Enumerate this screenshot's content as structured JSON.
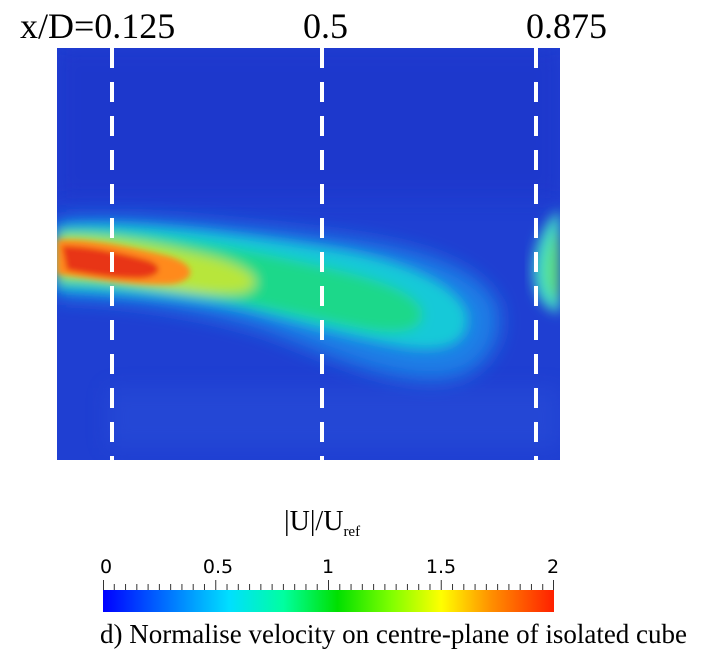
{
  "top_labels": [
    "x/D=0.125",
    "0.5",
    "0.875"
  ],
  "colorbar": {
    "title_main": "|U|/U",
    "title_sub": "ref",
    "tick_labels": [
      "0",
      "0.5",
      "1",
      "1.5",
      "2"
    ],
    "min": 0,
    "max": 2,
    "colors": [
      "#0000ff",
      "#00dfff",
      "#00e000",
      "#ffff00",
      "#ff2000"
    ]
  },
  "caption": "d) Normalise velocity on centre-plane of isolated cube",
  "field": {
    "background_color": "#1f3fd2",
    "line_positions_xD": [
      0.125,
      0.5,
      0.875
    ]
  }
}
